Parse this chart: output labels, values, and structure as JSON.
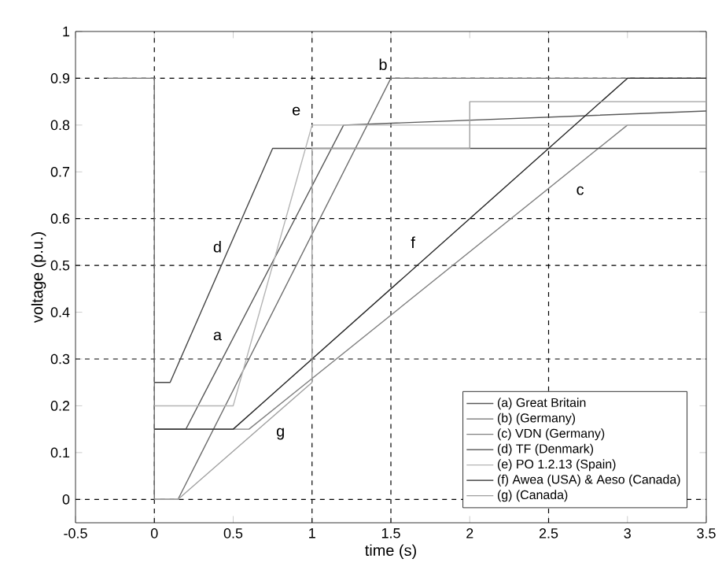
{
  "chart_data": {
    "type": "line",
    "xlabel": "time (s)",
    "ylabel": "voltage (p.u.)",
    "xlim": [
      -0.5,
      3.5
    ],
    "ylim": [
      -0.05,
      1
    ],
    "xticks": [
      -0.5,
      0,
      0.5,
      1,
      1.5,
      2,
      2.5,
      3,
      3.5
    ],
    "yticks": [
      0,
      0.1,
      0.2,
      0.3,
      0.4,
      0.5,
      0.6,
      0.7,
      0.8,
      0.9,
      1
    ],
    "grid": false,
    "legend": "bottom right",
    "line_style": "solid",
    "marker": "none",
    "series": [
      {
        "name": "(a) Great Britain",
        "color": "#5a5a5a",
        "x": [
          0,
          0.2,
          1.2,
          3.5
        ],
        "values": [
          0.15,
          0.15,
          0.8,
          0.83
        ]
      },
      {
        "name": "(b) (Germany)",
        "color": "#6e6e6e",
        "x": [
          -0.3,
          0,
          0,
          0.15,
          1.5,
          3.5
        ],
        "values": [
          0.9,
          0.9,
          0,
          0,
          0.9,
          0.9
        ]
      },
      {
        "name": "(c) VDN (Germany)",
        "color": "#808080",
        "x": [
          0,
          0.6,
          3,
          3.5
        ],
        "values": [
          0.15,
          0.15,
          0.8,
          0.8
        ]
      },
      {
        "name": "(d) TF (Denmark)",
        "color": "#454545",
        "x": [
          0,
          0.1,
          0.75,
          3.5
        ],
        "values": [
          0.25,
          0.25,
          0.75,
          0.75
        ]
      },
      {
        "name": "(e) PO 1.2.13 (Spain)",
        "color": "#b4b4b4",
        "x": [
          0,
          0.5,
          1,
          3.5
        ],
        "values": [
          0.2,
          0.2,
          0.8,
          0.8
        ]
      },
      {
        "name": "(f) Awea (USA) & Aeso (Canada)",
        "color": "#252525",
        "x": [
          0,
          0.5,
          3,
          3.5
        ],
        "values": [
          0.15,
          0.15,
          0.9,
          0.9
        ]
      },
      {
        "name": "(g) (Canada)",
        "color": "#a0a0a0",
        "x": [
          0,
          0.15,
          1,
          1,
          2,
          2,
          3.5
        ],
        "values": [
          0,
          0,
          0.25,
          0.75,
          0.75,
          0.85,
          0.85
        ]
      }
    ],
    "ref_lines": [
      {
        "axis": "x",
        "value": 0,
        "line_style": "dashed",
        "color": "#000000"
      },
      {
        "axis": "x",
        "value": 1,
        "line_style": "dashed",
        "color": "#000000"
      },
      {
        "axis": "x",
        "value": 1.5,
        "line_style": "dashed",
        "color": "#000000"
      },
      {
        "axis": "x",
        "value": 2.5,
        "line_style": "dashed",
        "color": "#000000"
      },
      {
        "axis": "y",
        "value": 0,
        "line_style": "dashed",
        "color": "#000000"
      },
      {
        "axis": "y",
        "value": 0.3,
        "line_style": "dashed",
        "color": "#000000"
      },
      {
        "axis": "y",
        "value": 0.5,
        "line_style": "dashed",
        "color": "#000000"
      },
      {
        "axis": "y",
        "value": 0.6,
        "line_style": "dashed",
        "color": "#000000"
      },
      {
        "axis": "y",
        "value": 0.9,
        "line_style": "dashed",
        "color": "#000000"
      }
    ],
    "annotations": [
      "a",
      "b",
      "c",
      "d",
      "e",
      "f",
      "g"
    ]
  }
}
